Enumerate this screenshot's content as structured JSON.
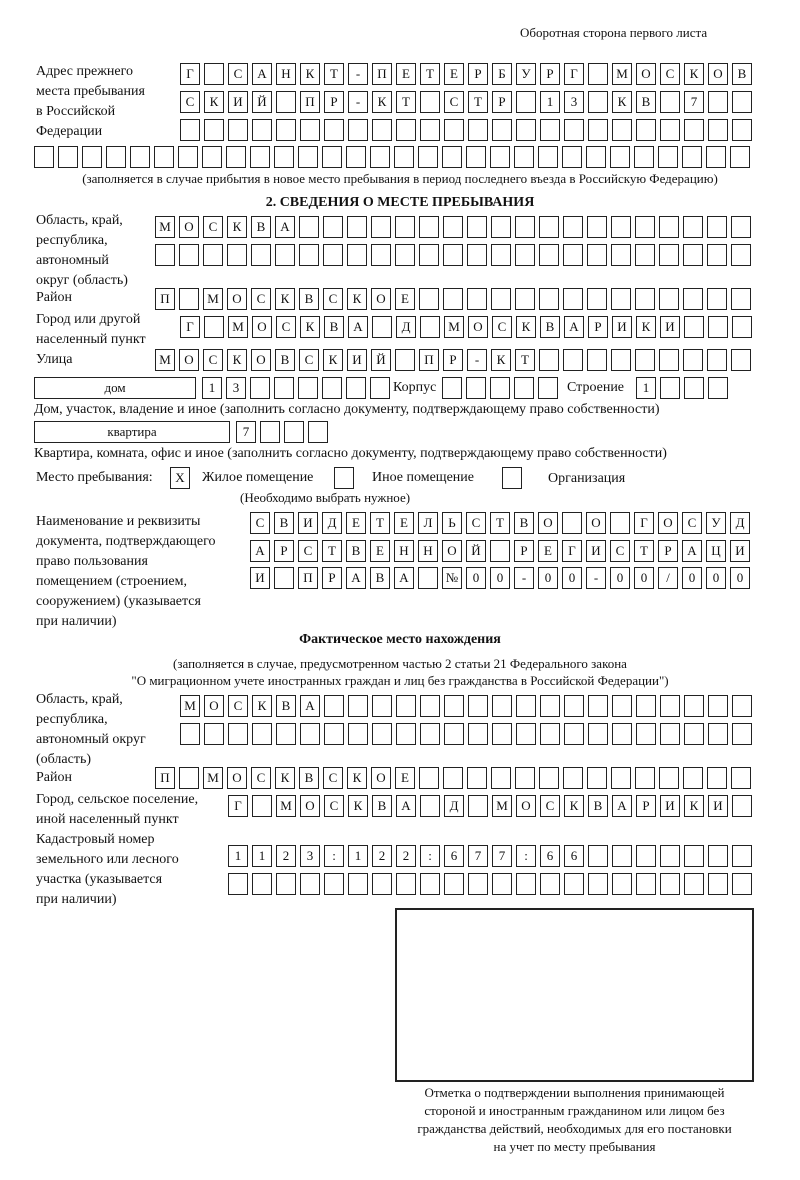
{
  "header": "Оборотная сторона первого листа",
  "prior_address": {
    "label": "Адрес прежнего\nместа пребывания\nв Российской\nФедерации",
    "rows": [
      [
        "Г",
        "",
        "С",
        "А",
        "Н",
        "К",
        "Т",
        "-",
        "П",
        "Е",
        "Т",
        "Е",
        "Р",
        "Б",
        "У",
        "Р",
        "Г",
        "",
        "М",
        "О",
        "С",
        "К",
        "О",
        "В"
      ],
      [
        "С",
        "К",
        "И",
        "Й",
        "",
        "П",
        "Р",
        "-",
        "К",
        "Т",
        "",
        "С",
        "Т",
        "Р",
        "",
        "1",
        "3",
        "",
        "К",
        "В",
        "",
        "7",
        "",
        ""
      ],
      [
        "",
        "",
        "",
        "",
        "",
        "",
        "",
        "",
        "",
        "",
        "",
        "",
        "",
        "",
        "",
        "",
        "",
        "",
        "",
        "",
        "",
        "",
        "",
        ""
      ],
      [
        "",
        "",
        "",
        "",
        "",
        "",
        "",
        "",
        "",
        "",
        "",
        "",
        "",
        "",
        "",
        "",
        "",
        "",
        "",
        "",
        "",
        "",
        "",
        "",
        "",
        "",
        "",
        "",
        "",
        ""
      ]
    ],
    "note": "(заполняется в случае прибытия в новое место пребывания в период последнего въезда в Российскую Федерацию)"
  },
  "stay": {
    "heading": "2. СВЕДЕНИЯ О МЕСТЕ ПРЕБЫВАНИЯ",
    "region": {
      "label": "Область, край,\nреспублика,\nавтономный\nокруг (область)",
      "rows": [
        [
          "М",
          "О",
          "С",
          "К",
          "В",
          "А",
          "",
          "",
          "",
          "",
          "",
          "",
          "",
          "",
          "",
          "",
          "",
          "",
          "",
          "",
          "",
          "",
          "",
          "",
          ""
        ],
        [
          "",
          "",
          "",
          "",
          "",
          "",
          "",
          "",
          "",
          "",
          "",
          "",
          "",
          "",
          "",
          "",
          "",
          "",
          "",
          "",
          "",
          "",
          "",
          "",
          ""
        ]
      ]
    },
    "district": {
      "label": "Район",
      "cells": [
        "П",
        "",
        "М",
        "О",
        "С",
        "К",
        "В",
        "С",
        "К",
        "О",
        "Е",
        "",
        "",
        "",
        "",
        "",
        "",
        "",
        "",
        "",
        "",
        "",
        "",
        "",
        ""
      ]
    },
    "city": {
      "label": "Город или другой\nнаселенный пункт",
      "cells": [
        "Г",
        "",
        "М",
        "О",
        "С",
        "К",
        "В",
        "А",
        "",
        "Д",
        "",
        "М",
        "О",
        "С",
        "К",
        "В",
        "А",
        "Р",
        "И",
        "К",
        "И",
        "",
        "",
        ""
      ]
    },
    "street": {
      "label": "Улица",
      "cells": [
        "М",
        "О",
        "С",
        "К",
        "О",
        "В",
        "С",
        "К",
        "И",
        "Й",
        "",
        "П",
        "Р",
        "-",
        "К",
        "Т",
        "",
        "",
        "",
        "",
        "",
        "",
        "",
        "",
        ""
      ]
    },
    "house": {
      "type": "дом",
      "cells": [
        "1",
        "3",
        "",
        "",
        "",
        "",
        "",
        ""
      ],
      "note": "Дом, участок, владение и иное (заполнить согласно документу, подтверждающему право собственности)"
    },
    "korpus": {
      "label": "Корпус",
      "cells": [
        "",
        "",
        "",
        "",
        ""
      ]
    },
    "building": {
      "label": "Строение",
      "cells": [
        "1",
        "",
        "",
        ""
      ]
    },
    "apartment": {
      "type": "квартира",
      "cells": [
        "7",
        "",
        "",
        ""
      ],
      "note": "Квартира, комната, офис и иное (заполнить согласно документу, подтверждающему право собственности)"
    },
    "place": {
      "label": "Место пребывания:",
      "options": [
        {
          "label": "Жилое помещение",
          "mark": "X"
        },
        {
          "label": "Иное помещение",
          "mark": ""
        },
        {
          "label": "Организация",
          "mark": ""
        }
      ],
      "hint": "(Необходимо выбрать нужное)"
    },
    "document": {
      "label": "Наименование и реквизиты\nдокумента, подтверждающего\nправо пользования\nпомещением (строением,\nсооружением) (указывается\nпри наличии)",
      "rows": [
        [
          "С",
          "В",
          "И",
          "Д",
          "Е",
          "Т",
          "Е",
          "Л",
          "Ь",
          "С",
          "Т",
          "В",
          "О",
          "",
          "О",
          "",
          "Г",
          "О",
          "С",
          "У",
          "Д"
        ],
        [
          "А",
          "Р",
          "С",
          "Т",
          "В",
          "Е",
          "Н",
          "Н",
          "О",
          "Й",
          "",
          "Р",
          "Е",
          "Г",
          "И",
          "С",
          "Т",
          "Р",
          "А",
          "Ц",
          "И"
        ],
        [
          "И",
          "",
          "П",
          "Р",
          "А",
          "В",
          "А",
          "",
          "№",
          "0",
          "0",
          "-",
          "0",
          "0",
          "-",
          "0",
          "0",
          "/",
          "0",
          "0",
          "0"
        ]
      ]
    }
  },
  "actual": {
    "heading": "Фактическое место нахождения",
    "note1": "(заполняется в случае, предусмотренном частью 2 статьи 21 Федерального закона",
    "note2": "\"О миграционном учете иностранных граждан и лиц без гражданства в Российской Федерации\")",
    "region": {
      "label": "Область, край,\nреспублика,\nавтономный округ\n(область)",
      "rows": [
        [
          "М",
          "О",
          "С",
          "К",
          "В",
          "А",
          "",
          "",
          "",
          "",
          "",
          "",
          "",
          "",
          "",
          "",
          "",
          "",
          "",
          "",
          "",
          "",
          "",
          ""
        ],
        [
          "",
          "",
          "",
          "",
          "",
          "",
          "",
          "",
          "",
          "",
          "",
          "",
          "",
          "",
          "",
          "",
          "",
          "",
          "",
          "",
          "",
          "",
          "",
          ""
        ]
      ]
    },
    "district": {
      "label": "Район",
      "cells": [
        "П",
        "",
        "М",
        "О",
        "С",
        "К",
        "В",
        "С",
        "К",
        "О",
        "Е",
        "",
        "",
        "",
        "",
        "",
        "",
        "",
        "",
        "",
        "",
        "",
        "",
        "",
        ""
      ]
    },
    "city": {
      "label": "Город, сельское поселение,\nиной населенный пункт",
      "cells": [
        "Г",
        "",
        "М",
        "О",
        "С",
        "К",
        "В",
        "А",
        "",
        "Д",
        "",
        "М",
        "О",
        "С",
        "К",
        "В",
        "А",
        "Р",
        "И",
        "К",
        "И",
        ""
      ]
    },
    "cadastral": {
      "label": "Кадастровый номер\nземельного или лесного\nучастка (указывается\nпри наличии)",
      "rows": [
        [
          "1",
          "1",
          "2",
          "3",
          ":",
          "1",
          "2",
          "2",
          ":",
          "6",
          "7",
          "7",
          ":",
          "6",
          "6",
          "",
          "",
          "",
          "",
          "",
          "",
          ""
        ],
        [
          "",
          "",
          "",
          "",
          "",
          "",
          "",
          "",
          "",
          "",
          "",
          "",
          "",
          "",
          "",
          "",
          "",
          "",
          "",
          "",
          "",
          ""
        ]
      ]
    }
  },
  "confirmation_caption": "Отметка о подтверждении выполнения принимающей\nстороной и иностранным гражданином или лицом без\nгражданства действий, необходимых для его постановки\nна учет по месту пребывания"
}
